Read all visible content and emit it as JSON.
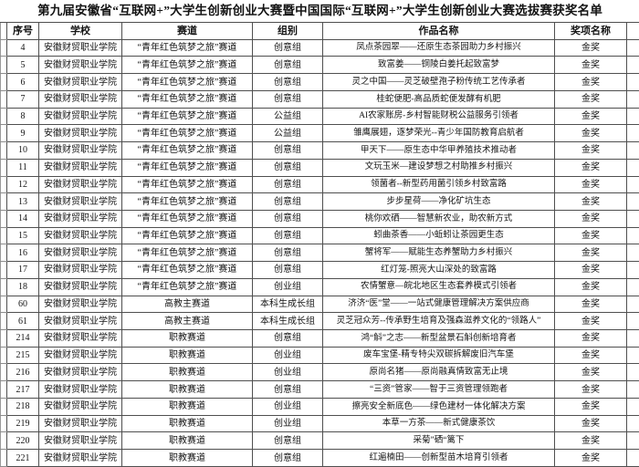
{
  "title": "第九届安徽省“互联网+”大学生创新创业大赛暨中国国际“互联网+”大学生创新创业大赛选拔赛获奖名单",
  "table": {
    "columns": [
      "序号",
      "学校",
      "赛道",
      "组别",
      "作品名称",
      "奖项名称"
    ],
    "rows": [
      [
        "4",
        "安徽财贸职业学院",
        "“青年红色筑梦之旅”赛道",
        "创意组",
        "凤点茶园翠——还原生态茶园助力乡村振兴",
        "金奖"
      ],
      [
        "5",
        "安徽财贸职业学院",
        "“青年红色筑梦之旅”赛道",
        "创意组",
        "致富姜——铜陵白姜托起致富梦",
        "金奖"
      ],
      [
        "6",
        "安徽财贸职业学院",
        "“青年红色筑梦之旅”赛道",
        "创意组",
        "灵之中国——灵芝破壁孢子粉传统工艺传承者",
        "金奖"
      ],
      [
        "7",
        "安徽财贸职业学院",
        "“青年红色筑梦之旅”赛道",
        "创意组",
        "桂蛇便肥-高品质蛇便发酵有机肥",
        "金奖"
      ],
      [
        "8",
        "安徽财贸职业学院",
        "“青年红色筑梦之旅”赛道",
        "公益组",
        "AI农家账房-乡村智能财税公益服务引领者",
        "金奖"
      ],
      [
        "9",
        "安徽财贸职业学院",
        "“青年红色筑梦之旅”赛道",
        "公益组",
        "雏鹰展翅，逐梦荣光--青少年国防教育启航者",
        "金奖"
      ],
      [
        "10",
        "安徽财贸职业学院",
        "“青年红色筑梦之旅”赛道",
        "创意组",
        "甲天下——原生态中华甲养殖技术推动者",
        "金奖"
      ],
      [
        "11",
        "安徽财贸职业学院",
        "“青年红色筑梦之旅”赛道",
        "创意组",
        "文玩玉米—建设梦想之村助推乡村振兴",
        "金奖"
      ],
      [
        "12",
        "安徽财贸职业学院",
        "“青年红色筑梦之旅”赛道",
        "创意组",
        "领菌者--新型药用菌引领乡村致富路",
        "金奖"
      ],
      [
        "13",
        "安徽财贸职业学院",
        "“青年红色筑梦之旅”赛道",
        "创意组",
        "步步星荷——净化矿坑生态",
        "金奖"
      ],
      [
        "14",
        "安徽财贸职业学院",
        "“青年红色筑梦之旅”赛道",
        "创意组",
        "桃你欢硒——智慧新农业，助农新方式",
        "金奖"
      ],
      [
        "15",
        "安徽财贸职业学院",
        "“青年红色筑梦之旅”赛道",
        "创意组",
        "蚓曲茶香——小蚯蚓让茶园更生态",
        "金奖"
      ],
      [
        "16",
        "安徽财贸职业学院",
        "“青年红色筑梦之旅”赛道",
        "创意组",
        "蟹将军——赋能生态养蟹助力乡村振兴",
        "金奖"
      ],
      [
        "17",
        "安徽财贸职业学院",
        "“青年红色筑梦之旅”赛道",
        "创意组",
        "红灯笼-照亮大山深处的致富路",
        "金奖"
      ],
      [
        "18",
        "安徽财贸职业学院",
        "“青年红色筑梦之旅”赛道",
        "创业组",
        "农情蟹意—皖北地区生态套养模式引领者",
        "金奖"
      ],
      [
        "60",
        "安徽财贸职业学院",
        "高教主赛道",
        "本科生成长组",
        "济济“医”堂——一站式健康管理解决方案供应商",
        "金奖"
      ],
      [
        "61",
        "安徽财贸职业学院",
        "高教主赛道",
        "本科生成长组",
        "灵芝冠众芳--传承野生培育及强森滋养文化的“领路人”",
        "金奖"
      ],
      [
        "214",
        "安徽财贸职业学院",
        "职教赛道",
        "创意组",
        "鸿“斛”之志——新型盆景石斛创新培育者",
        "金奖"
      ],
      [
        "215",
        "安徽财贸职业学院",
        "职教赛道",
        "创业组",
        "废车宝堡-精专特尖双碳拆解废旧汽车堡",
        "金奖"
      ],
      [
        "216",
        "安徽财贸职业学院",
        "职教赛道",
        "创业组",
        "原尚名猪——原尚融真情致富无止境",
        "金奖"
      ],
      [
        "217",
        "安徽财贸职业学院",
        "职教赛道",
        "创意组",
        "“三资”管家——智于三资管理领跑者",
        "金奖"
      ],
      [
        "218",
        "安徽财贸职业学院",
        "职教赛道",
        "创业组",
        "擦亮安全新底色——绿色建材一体化解决方案",
        "金奖"
      ],
      [
        "219",
        "安徽财贸职业学院",
        "职教赛道",
        "创业组",
        "本草一方茶——新式健康茶饮",
        "金奖"
      ],
      [
        "220",
        "安徽财贸职业学院",
        "职教赛道",
        "创意组",
        "采菊”硒“篱下",
        "金奖"
      ],
      [
        "221",
        "安徽财贸职业学院",
        "职教赛道",
        "创意组",
        "红遍楠田——创新型苗木培育引领者",
        "金奖"
      ]
    ],
    "award_value": "金奖",
    "border_color": "#4f4f4f",
    "text_color": "#141414"
  }
}
